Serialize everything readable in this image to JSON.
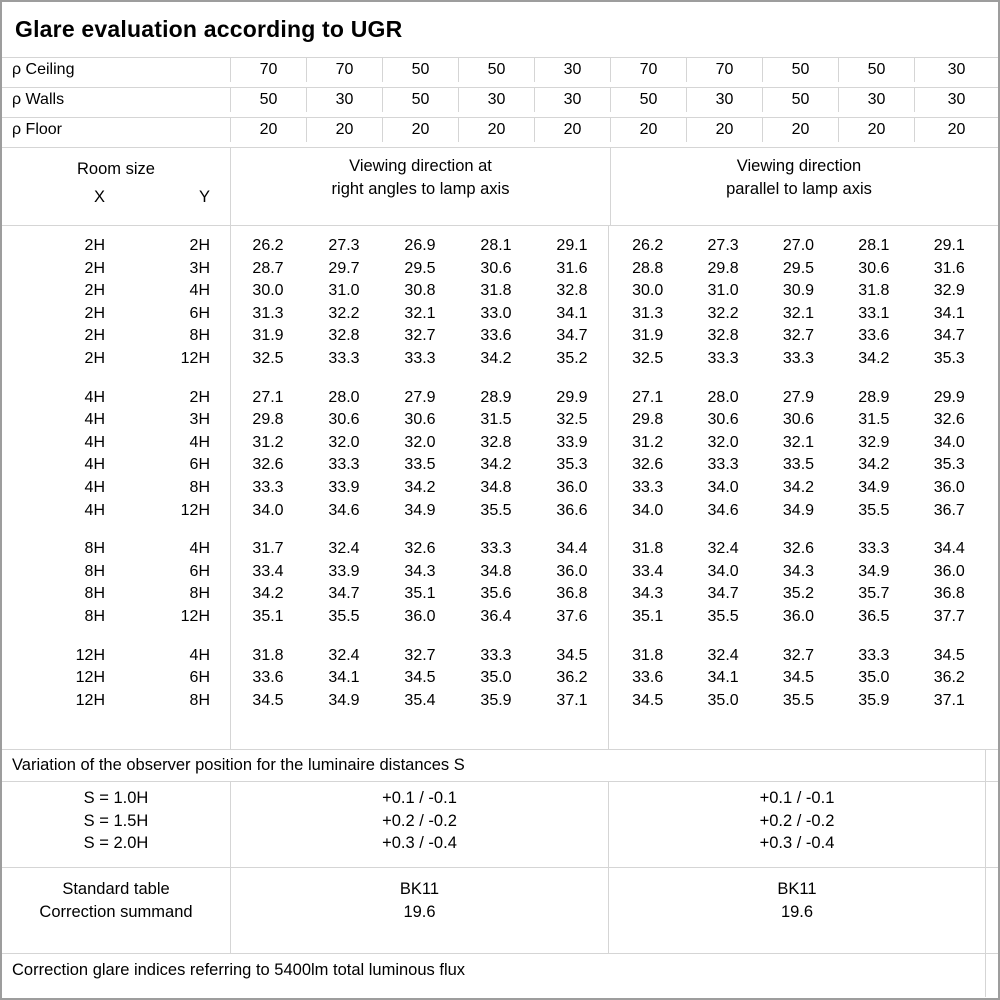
{
  "title": "Glare evaluation according to UGR",
  "colors": {
    "background": "#ffffff",
    "text": "#000000",
    "border_outer": "#9d9d9d",
    "border_inner": "#d5d5d5"
  },
  "reflectance_rows": [
    {
      "label": "ρ Ceiling",
      "values": [
        "70",
        "70",
        "50",
        "50",
        "30",
        "70",
        "70",
        "50",
        "50",
        "30"
      ]
    },
    {
      "label": "ρ Walls",
      "values": [
        "50",
        "30",
        "50",
        "30",
        "30",
        "50",
        "30",
        "50",
        "30",
        "30"
      ]
    },
    {
      "label": "ρ Floor",
      "values": [
        "20",
        "20",
        "20",
        "20",
        "20",
        "20",
        "20",
        "20",
        "20",
        "20"
      ]
    }
  ],
  "room_size_header": {
    "title": "Room size",
    "x": "X",
    "y": "Y"
  },
  "viewing_headers": {
    "left_line1": "Viewing direction at",
    "left_line2": "right angles to lamp axis",
    "right_line1": "Viewing direction",
    "right_line2": "parallel to lamp axis"
  },
  "ugr_blocks": [
    {
      "rows": [
        {
          "x": "2H",
          "y": "2H",
          "values": [
            "26.2",
            "27.3",
            "26.9",
            "28.1",
            "29.1",
            "26.2",
            "27.3",
            "27.0",
            "28.1",
            "29.1"
          ]
        },
        {
          "x": "2H",
          "y": "3H",
          "values": [
            "28.7",
            "29.7",
            "29.5",
            "30.6",
            "31.6",
            "28.8",
            "29.8",
            "29.5",
            "30.6",
            "31.6"
          ]
        },
        {
          "x": "2H",
          "y": "4H",
          "values": [
            "30.0",
            "31.0",
            "30.8",
            "31.8",
            "32.8",
            "30.0",
            "31.0",
            "30.9",
            "31.8",
            "32.9"
          ]
        },
        {
          "x": "2H",
          "y": "6H",
          "values": [
            "31.3",
            "32.2",
            "32.1",
            "33.0",
            "34.1",
            "31.3",
            "32.2",
            "32.1",
            "33.1",
            "34.1"
          ]
        },
        {
          "x": "2H",
          "y": "8H",
          "values": [
            "31.9",
            "32.8",
            "32.7",
            "33.6",
            "34.7",
            "31.9",
            "32.8",
            "32.7",
            "33.6",
            "34.7"
          ]
        },
        {
          "x": "2H",
          "y": "12H",
          "values": [
            "32.5",
            "33.3",
            "33.3",
            "34.2",
            "35.2",
            "32.5",
            "33.3",
            "33.3",
            "34.2",
            "35.3"
          ]
        }
      ]
    },
    {
      "rows": [
        {
          "x": "4H",
          "y": "2H",
          "values": [
            "27.1",
            "28.0",
            "27.9",
            "28.9",
            "29.9",
            "27.1",
            "28.0",
            "27.9",
            "28.9",
            "29.9"
          ]
        },
        {
          "x": "4H",
          "y": "3H",
          "values": [
            "29.8",
            "30.6",
            "30.6",
            "31.5",
            "32.5",
            "29.8",
            "30.6",
            "30.6",
            "31.5",
            "32.6"
          ]
        },
        {
          "x": "4H",
          "y": "4H",
          "values": [
            "31.2",
            "32.0",
            "32.0",
            "32.8",
            "33.9",
            "31.2",
            "32.0",
            "32.1",
            "32.9",
            "34.0"
          ]
        },
        {
          "x": "4H",
          "y": "6H",
          "values": [
            "32.6",
            "33.3",
            "33.5",
            "34.2",
            "35.3",
            "32.6",
            "33.3",
            "33.5",
            "34.2",
            "35.3"
          ]
        },
        {
          "x": "4H",
          "y": "8H",
          "values": [
            "33.3",
            "33.9",
            "34.2",
            "34.8",
            "36.0",
            "33.3",
            "34.0",
            "34.2",
            "34.9",
            "36.0"
          ]
        },
        {
          "x": "4H",
          "y": "12H",
          "values": [
            "34.0",
            "34.6",
            "34.9",
            "35.5",
            "36.6",
            "34.0",
            "34.6",
            "34.9",
            "35.5",
            "36.7"
          ]
        }
      ]
    },
    {
      "rows": [
        {
          "x": "8H",
          "y": "4H",
          "values": [
            "31.7",
            "32.4",
            "32.6",
            "33.3",
            "34.4",
            "31.8",
            "32.4",
            "32.6",
            "33.3",
            "34.4"
          ]
        },
        {
          "x": "8H",
          "y": "6H",
          "values": [
            "33.4",
            "33.9",
            "34.3",
            "34.8",
            "36.0",
            "33.4",
            "34.0",
            "34.3",
            "34.9",
            "36.0"
          ]
        },
        {
          "x": "8H",
          "y": "8H",
          "values": [
            "34.2",
            "34.7",
            "35.1",
            "35.6",
            "36.8",
            "34.3",
            "34.7",
            "35.2",
            "35.7",
            "36.8"
          ]
        },
        {
          "x": "8H",
          "y": "12H",
          "values": [
            "35.1",
            "35.5",
            "36.0",
            "36.4",
            "37.6",
            "35.1",
            "35.5",
            "36.0",
            "36.5",
            "37.7"
          ]
        }
      ]
    },
    {
      "rows": [
        {
          "x": "12H",
          "y": "4H",
          "values": [
            "31.8",
            "32.4",
            "32.7",
            "33.3",
            "34.5",
            "31.8",
            "32.4",
            "32.7",
            "33.3",
            "34.5"
          ]
        },
        {
          "x": "12H",
          "y": "6H",
          "values": [
            "33.6",
            "34.1",
            "34.5",
            "35.0",
            "36.2",
            "33.6",
            "34.1",
            "34.5",
            "35.0",
            "36.2"
          ]
        },
        {
          "x": "12H",
          "y": "8H",
          "values": [
            "34.5",
            "34.9",
            "35.4",
            "35.9",
            "37.1",
            "34.5",
            "35.0",
            "35.5",
            "35.9",
            "37.1"
          ]
        }
      ]
    }
  ],
  "variation_note": "Variation of the observer position for the luminaire distances S",
  "s_block": {
    "labels": [
      "S = 1.0H",
      "S = 1.5H",
      "S = 2.0H"
    ],
    "left_values": [
      "+0.1 / -0.1",
      "+0.2 / -0.2",
      "+0.3 / -0.4"
    ],
    "right_values": [
      "+0.1 / -0.1",
      "+0.2 / -0.2",
      "+0.3 / -0.4"
    ]
  },
  "standard_block": {
    "labels": [
      "Standard table",
      "Correction summand"
    ],
    "left_values": [
      "BK11",
      "19.6"
    ],
    "right_values": [
      "BK11",
      "19.6"
    ]
  },
  "footer": "Correction glare indices referring to 5400lm total luminous flux"
}
